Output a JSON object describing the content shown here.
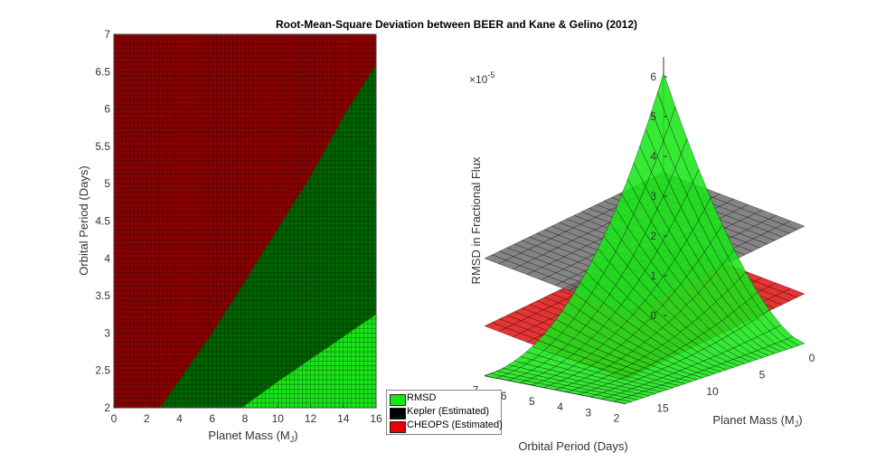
{
  "figure": {
    "title": "Root-Mean-Square Deviation between BEER and Kane & Gelino (2012)"
  },
  "colors": {
    "rmsd": "#19e619",
    "kepler": "#006400",
    "kepler_legend": "#000000",
    "cheops": "#8b0000",
    "cheops_legend": "#e60000",
    "kepler_3d": "#6e6e6e",
    "cheops_3d": "#e01010"
  },
  "legend": {
    "entries": [
      "RMSD",
      "Kepler (Estimated)",
      "CHEOPS (Estimated)"
    ]
  },
  "chart_data": [
    {
      "type": "heatmap",
      "title": "",
      "xlabel": "Planet Mass (M_J)",
      "ylabel": "Orbital Period (Days)",
      "xlim": [
        0,
        16
      ],
      "ylim": [
        2,
        7
      ],
      "xticks": [
        0,
        2,
        4,
        6,
        8,
        10,
        12,
        14,
        16
      ],
      "yticks": [
        2,
        2.5,
        3,
        3.5,
        4,
        4.5,
        5,
        5.5,
        6,
        6.5,
        7
      ],
      "grid": true,
      "regions": [
        {
          "name": "CHEOPS (Estimated)",
          "description_color": "cheops"
        },
        {
          "name": "Kepler (Estimated)",
          "description_color": "kepler"
        },
        {
          "name": "RMSD",
          "description_color": "rmsd"
        }
      ],
      "cheops_boundary": {
        "mass": [
          2.8,
          6,
          8,
          10,
          12,
          14,
          16
        ],
        "period": [
          2.0,
          3.0,
          3.7,
          4.4,
          5.1,
          5.9,
          6.6
        ]
      },
      "kepler_boundary": {
        "mass": [
          7.8,
          10,
          12,
          14,
          16
        ],
        "period": [
          2.0,
          2.35,
          2.65,
          2.95,
          3.25
        ]
      }
    },
    {
      "type": "surface3d",
      "zlabel": "RMSD in Fractional Flux",
      "zscale_label": "×10",
      "zscale_exp": "-5",
      "xlabel": "Planet Mass (M_J)",
      "ylabel": "Orbital Period (Days)",
      "zticks": [
        0,
        1,
        2,
        3,
        4,
        5,
        6
      ],
      "mass_ticks": [
        0,
        5,
        10,
        15
      ],
      "period_ticks": [
        2,
        3,
        4,
        5,
        6,
        7
      ],
      "surfaces": [
        {
          "name": "Kepler (Estimated)",
          "z_lower": 2.3,
          "z_upper": 3.6
        },
        {
          "name": "CHEOPS (Estimated)",
          "z_lower": 0.6,
          "z_upper": 1.9
        },
        {
          "name": "RMSD",
          "z_max": 6.1,
          "z_min": 0
        }
      ]
    }
  ]
}
